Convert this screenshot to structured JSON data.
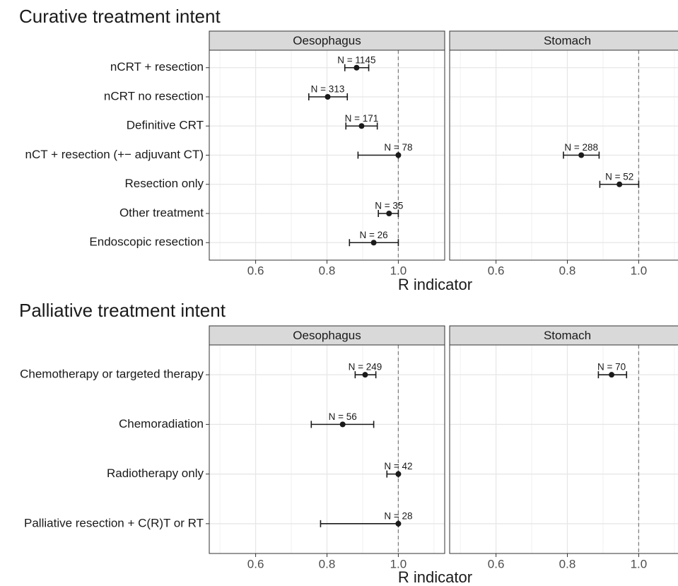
{
  "chart_data": [
    {
      "type": "errorbar",
      "title": "Curative treatment intent",
      "x_label": "R indicator",
      "categories": [
        "nCRT + resection",
        "nCRT no resection",
        "Definitive CRT",
        "nCT + resection (+− adjuvant CT)",
        "Resection only",
        "Other treatment",
        "Endoscopic resection"
      ],
      "xlim": [
        0.47,
        1.13
      ],
      "xticks": [
        {
          "value": 0.6,
          "label": "0.6"
        },
        {
          "value": 0.8,
          "label": "0.8"
        },
        {
          "value": 1.0,
          "label": "1.0"
        }
      ],
      "xminor": [
        0.5,
        0.7,
        0.9,
        1.1
      ],
      "reference": 1.0,
      "grid": true,
      "facets": [
        {
          "name": "Oesophagus",
          "values": [
            0.883,
            0.802,
            0.897,
            1.0,
            null,
            0.974,
            0.931
          ],
          "lower": [
            0.85,
            0.749,
            0.853,
            0.887,
            null,
            0.944,
            0.863
          ],
          "upper": [
            0.917,
            0.857,
            0.941,
            1.0,
            null,
            1.0,
            1.0
          ],
          "labels": [
            "N = 1145",
            "N = 313",
            "N = 171",
            "N = 78",
            null,
            "N = 35",
            "N = 26"
          ]
        },
        {
          "name": "Stomach",
          "values": [
            null,
            null,
            null,
            0.839,
            0.946,
            null,
            null
          ],
          "lower": [
            null,
            null,
            null,
            0.789,
            0.891,
            null,
            null
          ],
          "upper": [
            null,
            null,
            null,
            0.889,
            1.0,
            null,
            null
          ],
          "labels": [
            null,
            null,
            null,
            "N = 288",
            "N = 52",
            null,
            null
          ]
        }
      ]
    },
    {
      "type": "errorbar",
      "title": "Palliative treatment intent",
      "x_label": "R indicator",
      "categories": [
        "Chemotherapy or targeted therapy",
        "Chemoradiation",
        "Radiotherapy only",
        "Palliative resection + C(R)T or RT"
      ],
      "xlim": [
        0.47,
        1.13
      ],
      "xticks": [
        {
          "value": 0.6,
          "label": "0.6"
        },
        {
          "value": 0.8,
          "label": "0.8"
        },
        {
          "value": 1.0,
          "label": "1.0"
        }
      ],
      "xminor": [
        0.5,
        0.7,
        0.9,
        1.1
      ],
      "reference": 1.0,
      "grid": true,
      "facets": [
        {
          "name": "Oesophagus",
          "values": [
            0.907,
            0.844,
            1.0,
            1.0
          ],
          "lower": [
            0.879,
            0.756,
            0.968,
            0.782
          ],
          "upper": [
            0.937,
            0.931,
            1.0,
            1.0
          ],
          "labels": [
            "N = 249",
            "N = 56",
            "N = 42",
            "N = 28"
          ]
        },
        {
          "name": "Stomach",
          "values": [
            0.924,
            null,
            null,
            null
          ],
          "lower": [
            0.887,
            null,
            null,
            null
          ],
          "upper": [
            0.966,
            null,
            null,
            null
          ],
          "labels": [
            "N = 70",
            null,
            null,
            null
          ]
        }
      ]
    }
  ]
}
